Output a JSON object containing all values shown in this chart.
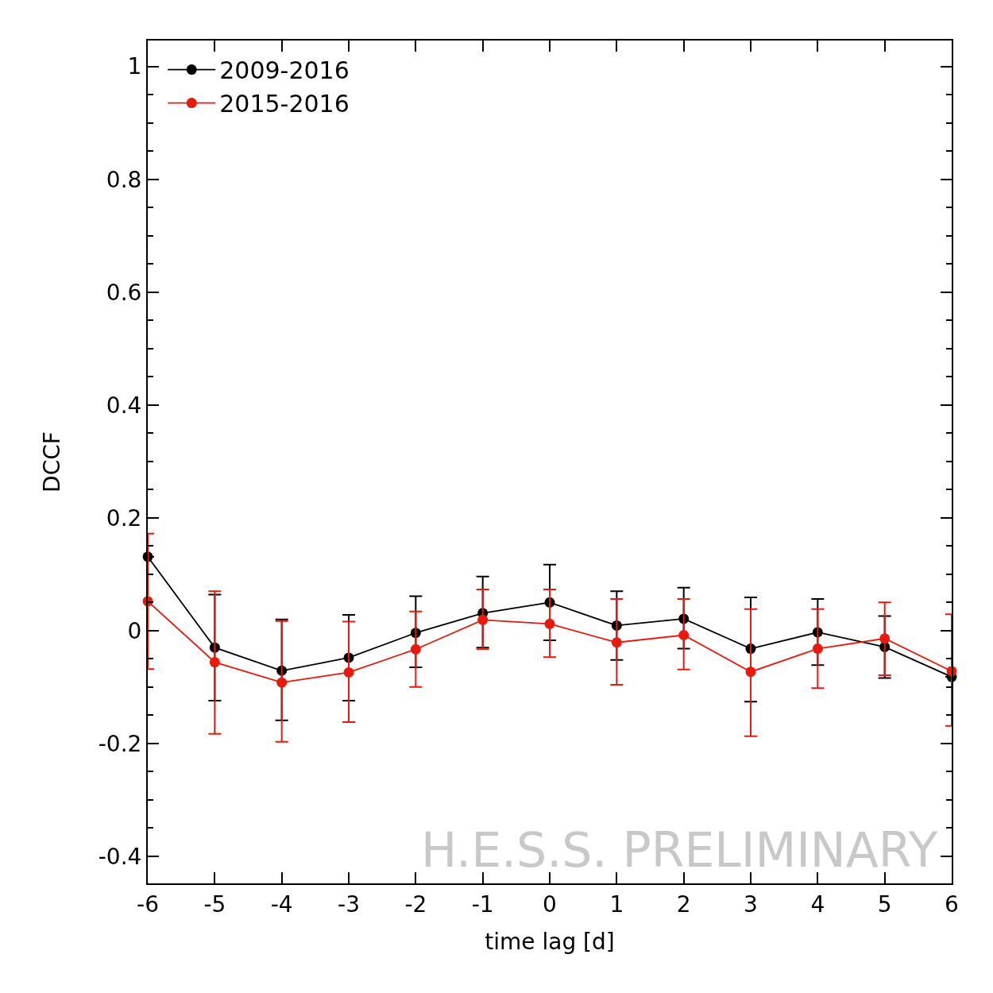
{
  "chart_data": {
    "type": "line",
    "xlabel": "time lag [d]",
    "ylabel": "DCCF",
    "x": [
      -6,
      -5,
      -4,
      -3,
      -2,
      -1,
      0,
      1,
      2,
      3,
      4,
      5,
      6
    ],
    "series": [
      {
        "name": "2009-2016",
        "color": "#000000",
        "values": [
          0.131,
          -0.03,
          -0.071,
          -0.048,
          -0.004,
          0.031,
          0.05,
          0.009,
          0.021,
          -0.032,
          -0.003,
          -0.029,
          -0.082
        ],
        "errors": [
          null,
          [
            -0.124,
            0.064
          ],
          [
            -0.159,
            0.02
          ],
          [
            -0.124,
            0.028
          ],
          [
            -0.065,
            0.061
          ],
          [
            -0.03,
            0.096
          ],
          [
            -0.017,
            0.117
          ],
          [
            -0.052,
            0.07
          ],
          [
            -0.032,
            0.076
          ],
          [
            -0.126,
            0.059
          ],
          [
            -0.061,
            0.056
          ],
          [
            -0.084,
            0.026
          ],
          null
        ]
      },
      {
        "name": "2015-2016",
        "color": "#e8190f",
        "values": [
          0.052,
          -0.056,
          -0.092,
          -0.074,
          -0.033,
          0.019,
          0.012,
          -0.021,
          -0.008,
          -0.073,
          -0.032,
          -0.014,
          -0.072
        ],
        "errors": [
          [
            -0.068,
            0.172
          ],
          [
            -0.183,
            0.07
          ],
          [
            -0.197,
            0.017
          ],
          [
            -0.162,
            0.016
          ],
          [
            -0.1,
            0.034
          ],
          [
            -0.033,
            0.073
          ],
          [
            -0.047,
            0.073
          ],
          [
            -0.096,
            0.056
          ],
          [
            -0.069,
            0.056
          ],
          [
            -0.187,
            0.038
          ],
          [
            -0.102,
            0.038
          ],
          [
            -0.079,
            0.05
          ],
          [
            -0.169,
            0.029
          ]
        ]
      }
    ],
    "xlim": [
      -6,
      6
    ],
    "xticks": [
      -6,
      -5,
      -4,
      -3,
      -2,
      -1,
      0,
      1,
      2,
      3,
      4,
      5,
      6
    ],
    "ylim": [
      -0.448,
      1.046
    ],
    "yticks": [
      -0.4,
      -0.2,
      0,
      0.2,
      0.4,
      0.6,
      0.8,
      1
    ],
    "annotations": [
      "H.E.S.S. PRELIMINARY"
    ],
    "legend": "top left",
    "marker": "circle",
    "line_style": "solid"
  }
}
